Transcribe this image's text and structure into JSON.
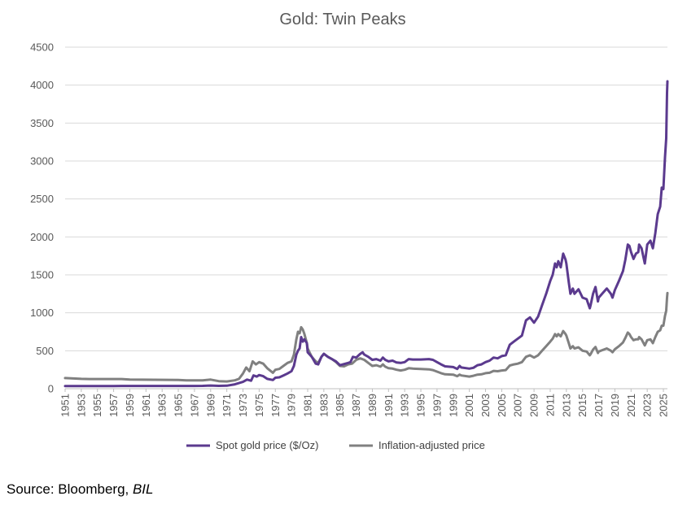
{
  "chart_data": {
    "type": "line",
    "title": "Gold: Twin Peaks",
    "xlabel": "",
    "ylabel": "",
    "ylim": [
      0,
      4500
    ],
    "yticks": [
      0,
      500,
      1000,
      1500,
      2000,
      2500,
      3000,
      3500,
      4000,
      4500
    ],
    "xlim": [
      1951,
      2025.5
    ],
    "xticks": [
      "1951",
      "1953",
      "1955",
      "1957",
      "1959",
      "1961",
      "1963",
      "1965",
      "1967",
      "1969",
      "1971",
      "1973",
      "1975",
      "1977",
      "1979",
      "1981",
      "1983",
      "1985",
      "1987",
      "1989",
      "1991",
      "1993",
      "1995",
      "1997",
      "1999",
      "2001",
      "2003",
      "2005",
      "2007",
      "2009",
      "2011",
      "2013",
      "2015",
      "2017",
      "2019",
      "2021",
      "2023",
      "2025"
    ],
    "legend_position": "bottom",
    "grid": true,
    "series": [
      {
        "name": "Spot gold price ($/Oz)",
        "color": "#5b3a8e",
        "points": [
          [
            1951,
            35
          ],
          [
            1957,
            35
          ],
          [
            1958,
            36
          ],
          [
            1967,
            36
          ],
          [
            1968,
            38
          ],
          [
            1969,
            42
          ],
          [
            1970,
            37
          ],
          [
            1971,
            40
          ],
          [
            1972,
            58
          ],
          [
            1973,
            90
          ],
          [
            1973.5,
            120
          ],
          [
            1974,
            105
          ],
          [
            1974.3,
            175
          ],
          [
            1974.7,
            160
          ],
          [
            1975,
            180
          ],
          [
            1975.5,
            165
          ],
          [
            1976,
            130
          ],
          [
            1976.7,
            115
          ],
          [
            1977,
            145
          ],
          [
            1977.5,
            150
          ],
          [
            1978,
            175
          ],
          [
            1978.5,
            200
          ],
          [
            1979,
            230
          ],
          [
            1979.3,
            300
          ],
          [
            1979.6,
            450
          ],
          [
            1979.8,
            500
          ],
          [
            1980,
            530
          ],
          [
            1980.2,
            680
          ],
          [
            1980.4,
            620
          ],
          [
            1980.6,
            650
          ],
          [
            1980.9,
            600
          ],
          [
            1981,
            480
          ],
          [
            1981.5,
            420
          ],
          [
            1982,
            330
          ],
          [
            1982.3,
            320
          ],
          [
            1982.7,
            420
          ],
          [
            1983,
            460
          ],
          [
            1983.5,
            420
          ],
          [
            1984,
            390
          ],
          [
            1984.5,
            360
          ],
          [
            1985,
            310
          ],
          [
            1985.5,
            325
          ],
          [
            1986,
            340
          ],
          [
            1986.3,
            350
          ],
          [
            1986.6,
            420
          ],
          [
            1987,
            410
          ],
          [
            1987.5,
            460
          ],
          [
            1987.8,
            480
          ],
          [
            1988,
            450
          ],
          [
            1988.5,
            420
          ],
          [
            1989,
            380
          ],
          [
            1989.5,
            390
          ],
          [
            1990,
            370
          ],
          [
            1990.3,
            410
          ],
          [
            1990.6,
            380
          ],
          [
            1991,
            360
          ],
          [
            1991.5,
            370
          ],
          [
            1992,
            345
          ],
          [
            1992.5,
            340
          ],
          [
            1993,
            350
          ],
          [
            1993.5,
            390
          ],
          [
            1994,
            385
          ],
          [
            1995,
            385
          ],
          [
            1996,
            390
          ],
          [
            1996.5,
            380
          ],
          [
            1997,
            350
          ],
          [
            1997.5,
            320
          ],
          [
            1998,
            295
          ],
          [
            1999,
            285
          ],
          [
            1999.5,
            260
          ],
          [
            1999.8,
            300
          ],
          [
            2000,
            280
          ],
          [
            2001,
            265
          ],
          [
            2001.5,
            275
          ],
          [
            2002,
            310
          ],
          [
            2002.5,
            320
          ],
          [
            2003,
            350
          ],
          [
            2003.5,
            370
          ],
          [
            2004,
            410
          ],
          [
            2004.5,
            400
          ],
          [
            2005,
            430
          ],
          [
            2005.5,
            440
          ],
          [
            2006,
            580
          ],
          [
            2006.5,
            620
          ],
          [
            2007,
            660
          ],
          [
            2007.5,
            700
          ],
          [
            2008,
            900
          ],
          [
            2008.5,
            940
          ],
          [
            2009,
            870
          ],
          [
            2009.5,
            950
          ],
          [
            2010,
            1100
          ],
          [
            2010.5,
            1250
          ],
          [
            2011,
            1420
          ],
          [
            2011.3,
            1500
          ],
          [
            2011.6,
            1650
          ],
          [
            2011.8,
            1600
          ],
          [
            2012,
            1680
          ],
          [
            2012.3,
            1600
          ],
          [
            2012.6,
            1780
          ],
          [
            2012.9,
            1700
          ],
          [
            2013,
            1650
          ],
          [
            2013.3,
            1400
          ],
          [
            2013.5,
            1250
          ],
          [
            2013.8,
            1320
          ],
          [
            2014,
            1250
          ],
          [
            2014.5,
            1310
          ],
          [
            2015,
            1200
          ],
          [
            2015.5,
            1180
          ],
          [
            2015.9,
            1060
          ],
          [
            2016,
            1100
          ],
          [
            2016.3,
            1250
          ],
          [
            2016.6,
            1340
          ],
          [
            2016.9,
            1150
          ],
          [
            2017,
            1200
          ],
          [
            2017.5,
            1260
          ],
          [
            2018,
            1320
          ],
          [
            2018.5,
            1250
          ],
          [
            2018.7,
            1200
          ],
          [
            2019,
            1300
          ],
          [
            2019.5,
            1420
          ],
          [
            2020,
            1550
          ],
          [
            2020.3,
            1700
          ],
          [
            2020.6,
            1900
          ],
          [
            2020.8,
            1880
          ],
          [
            2021,
            1800
          ],
          [
            2021.3,
            1710
          ],
          [
            2021.6,
            1780
          ],
          [
            2021.9,
            1800
          ],
          [
            2022,
            1900
          ],
          [
            2022.3,
            1850
          ],
          [
            2022.7,
            1650
          ],
          [
            2023,
            1900
          ],
          [
            2023.4,
            1950
          ],
          [
            2023.7,
            1850
          ],
          [
            2024,
            2050
          ],
          [
            2024.3,
            2300
          ],
          [
            2024.6,
            2400
          ],
          [
            2024.8,
            2650
          ],
          [
            2025,
            2630
          ],
          [
            2025.2,
            3050
          ],
          [
            2025.35,
            3300
          ],
          [
            2025.45,
            3900
          ],
          [
            2025.5,
            4050
          ]
        ]
      },
      {
        "name": "Inflation-adjusted price",
        "color": "#808080",
        "points": [
          [
            1951,
            140
          ],
          [
            1953,
            130
          ],
          [
            1954,
            128
          ],
          [
            1958,
            128
          ],
          [
            1959,
            120
          ],
          [
            1965,
            115
          ],
          [
            1966,
            110
          ],
          [
            1968,
            110
          ],
          [
            1969,
            120
          ],
          [
            1970,
            100
          ],
          [
            1971,
            95
          ],
          [
            1972,
            110
          ],
          [
            1972.5,
            130
          ],
          [
            1973,
            200
          ],
          [
            1973.4,
            280
          ],
          [
            1973.8,
            230
          ],
          [
            1974.2,
            360
          ],
          [
            1974.6,
            320
          ],
          [
            1975,
            350
          ],
          [
            1975.5,
            330
          ],
          [
            1976,
            270
          ],
          [
            1976.7,
            210
          ],
          [
            1977,
            250
          ],
          [
            1977.5,
            260
          ],
          [
            1978,
            300
          ],
          [
            1978.5,
            340
          ],
          [
            1979,
            360
          ],
          [
            1979.3,
            450
          ],
          [
            1979.6,
            650
          ],
          [
            1979.8,
            750
          ],
          [
            1980,
            730
          ],
          [
            1980.2,
            810
          ],
          [
            1980.4,
            780
          ],
          [
            1980.6,
            720
          ],
          [
            1980.9,
            600
          ],
          [
            1981,
            530
          ],
          [
            1981.5,
            420
          ],
          [
            1982,
            360
          ],
          [
            1982.3,
            340
          ],
          [
            1982.7,
            420
          ],
          [
            1983,
            460
          ],
          [
            1983.5,
            420
          ],
          [
            1984,
            390
          ],
          [
            1984.5,
            350
          ],
          [
            1985,
            300
          ],
          [
            1985.5,
            295
          ],
          [
            1986,
            320
          ],
          [
            1986.5,
            330
          ],
          [
            1987,
            380
          ],
          [
            1987.5,
            400
          ],
          [
            1988,
            380
          ],
          [
            1988.5,
            340
          ],
          [
            1989,
            300
          ],
          [
            1989.5,
            310
          ],
          [
            1990,
            290
          ],
          [
            1990.3,
            320
          ],
          [
            1990.6,
            290
          ],
          [
            1991,
            270
          ],
          [
            1991.5,
            265
          ],
          [
            1992,
            250
          ],
          [
            1992.5,
            240
          ],
          [
            1993,
            250
          ],
          [
            1993.5,
            270
          ],
          [
            1994,
            265
          ],
          [
            1995,
            260
          ],
          [
            1996,
            255
          ],
          [
            1996.5,
            245
          ],
          [
            1997,
            225
          ],
          [
            1997.5,
            205
          ],
          [
            1998,
            190
          ],
          [
            1999,
            185
          ],
          [
            1999.5,
            165
          ],
          [
            1999.8,
            185
          ],
          [
            2000,
            175
          ],
          [
            2001,
            160
          ],
          [
            2001.5,
            170
          ],
          [
            2002,
            185
          ],
          [
            2002.5,
            190
          ],
          [
            2003,
            205
          ],
          [
            2003.5,
            210
          ],
          [
            2004,
            235
          ],
          [
            2004.5,
            230
          ],
          [
            2005,
            240
          ],
          [
            2005.5,
            245
          ],
          [
            2006,
            305
          ],
          [
            2006.5,
            320
          ],
          [
            2007,
            330
          ],
          [
            2007.5,
            350
          ],
          [
            2008,
            420
          ],
          [
            2008.5,
            440
          ],
          [
            2009,
            410
          ],
          [
            2009.5,
            440
          ],
          [
            2010,
            500
          ],
          [
            2010.5,
            560
          ],
          [
            2011,
            620
          ],
          [
            2011.3,
            660
          ],
          [
            2011.6,
            720
          ],
          [
            2011.8,
            690
          ],
          [
            2012,
            720
          ],
          [
            2012.3,
            690
          ],
          [
            2012.6,
            760
          ],
          [
            2012.9,
            720
          ],
          [
            2013,
            700
          ],
          [
            2013.3,
            600
          ],
          [
            2013.5,
            530
          ],
          [
            2013.8,
            560
          ],
          [
            2014,
            530
          ],
          [
            2014.5,
            545
          ],
          [
            2015,
            500
          ],
          [
            2015.5,
            490
          ],
          [
            2015.9,
            440
          ],
          [
            2016,
            455
          ],
          [
            2016.3,
            515
          ],
          [
            2016.6,
            550
          ],
          [
            2016.9,
            470
          ],
          [
            2017,
            490
          ],
          [
            2017.5,
            510
          ],
          [
            2018,
            530
          ],
          [
            2018.5,
            500
          ],
          [
            2018.7,
            480
          ],
          [
            2019,
            520
          ],
          [
            2019.5,
            560
          ],
          [
            2020,
            610
          ],
          [
            2020.3,
            670
          ],
          [
            2020.6,
            740
          ],
          [
            2020.8,
            720
          ],
          [
            2021,
            680
          ],
          [
            2021.3,
            640
          ],
          [
            2021.6,
            650
          ],
          [
            2021.9,
            650
          ],
          [
            2022,
            680
          ],
          [
            2022.3,
            650
          ],
          [
            2022.7,
            570
          ],
          [
            2023,
            640
          ],
          [
            2023.4,
            650
          ],
          [
            2023.7,
            600
          ],
          [
            2024,
            680
          ],
          [
            2024.3,
            750
          ],
          [
            2024.6,
            770
          ],
          [
            2024.8,
            830
          ],
          [
            2025,
            830
          ],
          [
            2025.2,
            960
          ],
          [
            2025.35,
            1030
          ],
          [
            2025.45,
            1200
          ],
          [
            2025.5,
            1260
          ]
        ]
      }
    ]
  },
  "source": {
    "prefix": "Source: Bloomberg, ",
    "emph": "BIL"
  }
}
